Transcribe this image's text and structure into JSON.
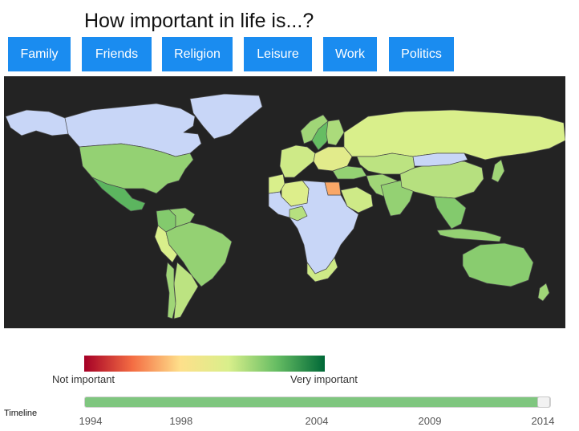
{
  "header": {
    "title": "How important in life is...?"
  },
  "categories": [
    {
      "label": "Family"
    },
    {
      "label": "Friends"
    },
    {
      "label": "Religion"
    },
    {
      "label": "Leisure"
    },
    {
      "label": "Work"
    },
    {
      "label": "Politics"
    }
  ],
  "legend": {
    "low_label": "Not important",
    "high_label": "Very important",
    "colors": [
      "#a50026",
      "#f46d43",
      "#fee08b",
      "#d9ef8b",
      "#66bd63",
      "#006837"
    ]
  },
  "map": {
    "background": "#232323",
    "no_data_color": "#c8d6f7",
    "regions": [
      {
        "name": "Greenland",
        "value": null
      },
      {
        "name": "Canada",
        "value": null
      },
      {
        "name": "Alaska",
        "value": null
      },
      {
        "name": "United States",
        "value": 0.72
      },
      {
        "name": "Mexico",
        "value": 0.82
      },
      {
        "name": "Colombia",
        "value": 0.75
      },
      {
        "name": "Venezuela",
        "value": 0.72
      },
      {
        "name": "Peru",
        "value": 0.6
      },
      {
        "name": "Brazil",
        "value": 0.72
      },
      {
        "name": "Argentina",
        "value": 0.65
      },
      {
        "name": "Chile",
        "value": 0.7
      },
      {
        "name": "Norway",
        "value": 0.7
      },
      {
        "name": "Sweden",
        "value": 0.8
      },
      {
        "name": "Finland",
        "value": 0.68
      },
      {
        "name": "Western Europe",
        "value": 0.62
      },
      {
        "name": "Eastern Europe",
        "value": 0.55
      },
      {
        "name": "Russia",
        "value": 0.6
      },
      {
        "name": "Kazakhstan",
        "value": 0.65
      },
      {
        "name": "Turkey",
        "value": 0.72
      },
      {
        "name": "Iran",
        "value": 0.7
      },
      {
        "name": "Egypt",
        "value": 0.3
      },
      {
        "name": "Algeria",
        "value": 0.58
      },
      {
        "name": "Morocco",
        "value": 0.6
      },
      {
        "name": "Nigeria",
        "value": 0.66
      },
      {
        "name": "Saudi Arabia",
        "value": 0.62
      },
      {
        "name": "Africa (other)",
        "value": null
      },
      {
        "name": "South Africa",
        "value": 0.62
      },
      {
        "name": "India",
        "value": 0.72
      },
      {
        "name": "China",
        "value": 0.66
      },
      {
        "name": "Mongolia",
        "value": null
      },
      {
        "name": "Japan",
        "value": 0.7
      },
      {
        "name": "Southeast Asia",
        "value": 0.75
      },
      {
        "name": "Indonesia",
        "value": 0.72
      },
      {
        "name": "Australia",
        "value": 0.74
      },
      {
        "name": "New Zealand",
        "value": 0.7
      }
    ]
  },
  "timeline": {
    "label": "Timeline",
    "ticks": [
      "1994",
      "1998",
      "2004",
      "2009",
      "2014"
    ],
    "min_year": 1994,
    "max_year": 2014,
    "selected_year": 2014,
    "fill_color": "#7fc67f"
  }
}
